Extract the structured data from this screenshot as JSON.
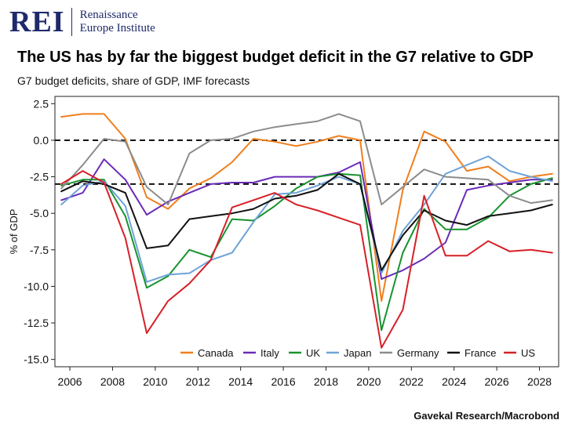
{
  "logo": {
    "mark": "REI",
    "line1": "Renaissance",
    "line2": "Europe Institute"
  },
  "title": "The US has by far the biggest budget deficit in the G7 relative to GDP",
  "subtitle": "G7 budget deficits, share of GDP, IMF forecasts",
  "source": "Gavekal Research/Macrobond",
  "chart_data": {
    "type": "line",
    "title": "The US has by far the biggest budget deficit in the G7 relative to GDP",
    "subtitle": "G7 budget deficits, share of GDP, IMF forecasts",
    "xlabel": "",
    "ylabel": "% of GDP",
    "xlim": [
      2005.3,
      2028.9
    ],
    "ylim": [
      -15.5,
      3
    ],
    "x_ticks": [
      2006,
      2008,
      2010,
      2012,
      2014,
      2016,
      2018,
      2020,
      2022,
      2024,
      2026,
      2028
    ],
    "y_ticks": [
      2.5,
      0,
      -2.5,
      -5,
      -7.5,
      -10,
      -12.5,
      -15
    ],
    "y_tick_labels": [
      "2.5",
      "0.0",
      "-2.5",
      "-5.0",
      "-7.5",
      "-10.0",
      "-12.5",
      "-15.0"
    ],
    "reference_lines": [
      0,
      -3
    ],
    "legend_position": "bottom-right",
    "x": [
      2005.6,
      2006.6,
      2007.6,
      2008.6,
      2009.6,
      2010.6,
      2011.6,
      2012.6,
      2013.6,
      2014.6,
      2015.6,
      2016.6,
      2017.6,
      2018.6,
      2019.6,
      2020.6,
      2021.6,
      2022.6,
      2023.6,
      2024.6,
      2025.6,
      2026.6,
      2027.6,
      2028.6
    ],
    "series": [
      {
        "name": "Canada",
        "color": "#f07f1d",
        "values": [
          1.6,
          1.8,
          1.8,
          0.1,
          -3.9,
          -4.7,
          -3.3,
          -2.6,
          -1.5,
          0.1,
          -0.1,
          -0.4,
          -0.1,
          0.3,
          0.0,
          -11.0,
          -3.4,
          0.6,
          -0.1,
          -2.1,
          -1.8,
          -2.8,
          -2.5,
          -2.3
        ]
      },
      {
        "name": "Italy",
        "color": "#6a2bb8",
        "values": [
          -4.1,
          -3.6,
          -1.3,
          -2.7,
          -5.1,
          -4.2,
          -3.6,
          -3.0,
          -2.9,
          -2.9,
          -2.5,
          -2.5,
          -2.5,
          -2.2,
          -1.5,
          -9.5,
          -8.9,
          -8.1,
          -7.0,
          -3.4,
          -3.1,
          -2.9,
          -2.7,
          -2.7
        ]
      },
      {
        "name": "UK",
        "color": "#17932f",
        "values": [
          -3.1,
          -2.7,
          -2.7,
          -5.2,
          -10.1,
          -9.3,
          -7.5,
          -8.0,
          -5.4,
          -5.5,
          -4.5,
          -3.3,
          -2.5,
          -2.3,
          -2.4,
          -13.0,
          -7.7,
          -4.7,
          -6.1,
          -6.1,
          -5.3,
          -3.8,
          -3.0,
          -2.6
        ]
      },
      {
        "name": "Japan",
        "color": "#6fa3d8",
        "values": [
          -4.4,
          -3.1,
          -2.8,
          -4.5,
          -9.7,
          -9.2,
          -9.1,
          -8.2,
          -7.7,
          -5.6,
          -3.7,
          -3.6,
          -3.1,
          -2.5,
          -3.0,
          -9.1,
          -6.2,
          -4.4,
          -2.3,
          -1.7,
          -1.1,
          -2.1,
          -2.5,
          -2.8
        ]
      },
      {
        "name": "Germany",
        "color": "#8c8c8c",
        "values": [
          -3.3,
          -1.7,
          0.1,
          -0.1,
          -3.2,
          -4.4,
          -0.9,
          0.0,
          0.1,
          0.6,
          0.9,
          1.1,
          1.3,
          1.8,
          1.3,
          -4.4,
          -3.2,
          -2.0,
          -2.5,
          -2.6,
          -2.7,
          -3.8,
          -4.3,
          -4.1
        ]
      },
      {
        "name": "France",
        "color": "#111111",
        "values": [
          -3.5,
          -2.8,
          -3.0,
          -3.6,
          -7.4,
          -7.2,
          -5.4,
          -5.2,
          -5.0,
          -4.7,
          -4.0,
          -3.8,
          -3.4,
          -2.3,
          -3.0,
          -8.9,
          -6.5,
          -4.8,
          -5.5,
          -5.8,
          -5.2,
          -5.0,
          -4.8,
          -4.4
        ]
      },
      {
        "name": "US",
        "color": "#d72027",
        "values": [
          -3.0,
          -2.1,
          -2.9,
          -6.7,
          -13.2,
          -11.0,
          -9.8,
          -8.2,
          -4.6,
          -4.1,
          -3.6,
          -4.4,
          -4.8,
          -5.3,
          -5.8,
          -14.2,
          -11.6,
          -3.8,
          -7.9,
          -7.9,
          -6.9,
          -7.6,
          -7.5,
          -7.7
        ]
      }
    ]
  }
}
